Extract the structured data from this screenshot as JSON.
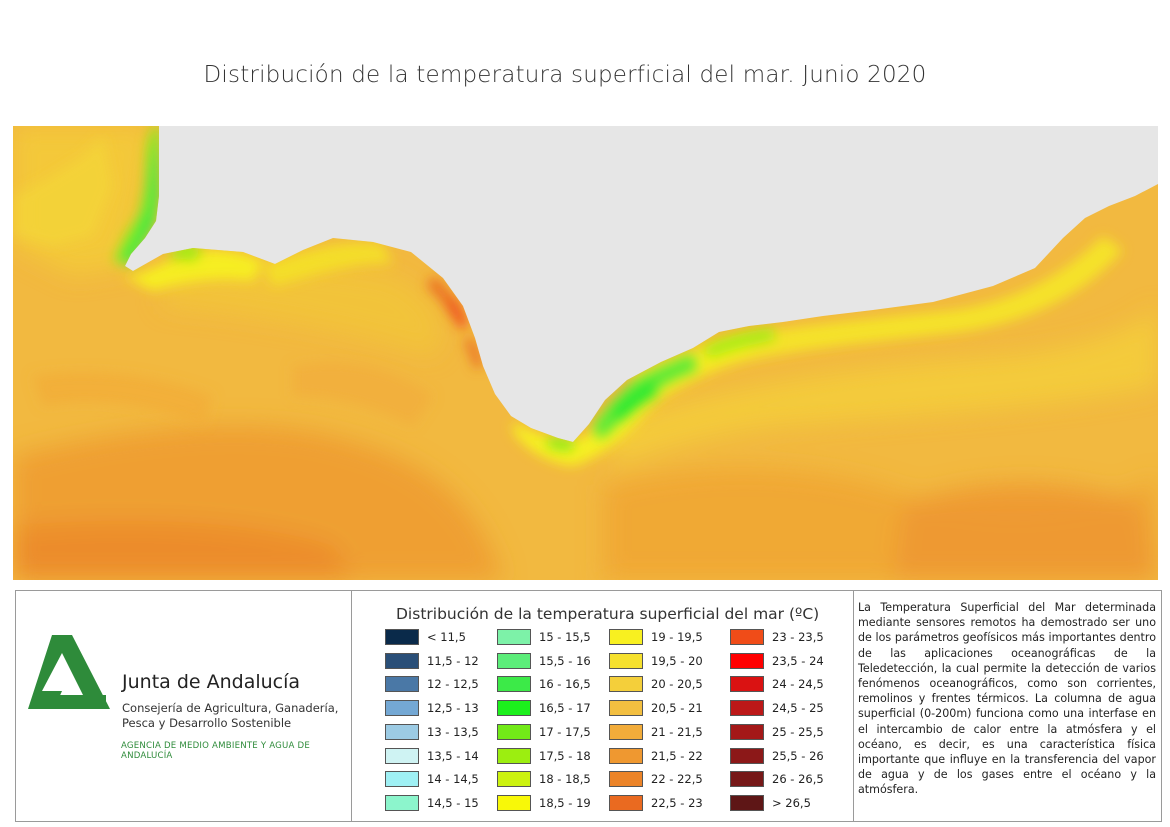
{
  "title": "Distribución de la temperatura superficial del mar. Junio 2020",
  "map": {
    "land_color": "#e6e6e6",
    "sea_dominant_color": "#f2b940"
  },
  "logo": {
    "org_name": "Junta de Andalucía",
    "department_lines": [
      "Consejería de Agricultura, Ganadería,",
      "Pesca y Desarrollo Sostenible"
    ],
    "agency": "AGENCIA DE MEDIO AMBIENTE Y AGUA DE ANDALUCÍA",
    "logo_color": "#2e8b3a"
  },
  "legend": {
    "title": "Distribución de la temperatura superficial del mar (ºC)",
    "items": [
      {
        "label": "< 11,5",
        "color": "#0a2a4a"
      },
      {
        "label": "11,5 - 12",
        "color": "#2a4f78"
      },
      {
        "label": "12 - 12,5",
        "color": "#4a78a6"
      },
      {
        "label": "12,5 - 13",
        "color": "#74a8d4"
      },
      {
        "label": "13 - 13,5",
        "color": "#9ccbe4"
      },
      {
        "label": "13,5 - 14",
        "color": "#cff3f3"
      },
      {
        "label": "14 - 14,5",
        "color": "#9ff0f4"
      },
      {
        "label": "14,5 - 15",
        "color": "#8cf5cc"
      },
      {
        "label": "15 - 15,5",
        "color": "#7df2a8"
      },
      {
        "label": "15,5 - 16",
        "color": "#5ced7a"
      },
      {
        "label": "16 - 16,5",
        "color": "#3cea48"
      },
      {
        "label": "16,5 - 17",
        "color": "#1cf01c"
      },
      {
        "label": "17 - 17,5",
        "color": "#72ea18"
      },
      {
        "label": "17,5 - 18",
        "color": "#9cee10"
      },
      {
        "label": "18 - 18,5",
        "color": "#ccf210"
      },
      {
        "label": "18,5 - 19",
        "color": "#f8f808"
      },
      {
        "label": "19 - 19,5",
        "color": "#f8f020"
      },
      {
        "label": "19,5 - 20",
        "color": "#f6e12e"
      },
      {
        "label": "20 - 20,5",
        "color": "#f4cf3a"
      },
      {
        "label": "20,5 - 21",
        "color": "#f3bf40"
      },
      {
        "label": "21 - 21,5",
        "color": "#f2ac3a"
      },
      {
        "label": "21,5 - 22",
        "color": "#ef9830"
      },
      {
        "label": "22 - 22,5",
        "color": "#ec8428"
      },
      {
        "label": "22,5 - 23",
        "color": "#ea6a20"
      },
      {
        "label": "23 - 23,5",
        "color": "#f04c18"
      },
      {
        "label": "23,5 - 24",
        "color": "#ff0000"
      },
      {
        "label": "24 - 24,5",
        "color": "#da1212"
      },
      {
        "label": "24,5 - 25",
        "color": "#bc1818"
      },
      {
        "label": "25 - 25,5",
        "color": "#a41818"
      },
      {
        "label": "25,5 - 26",
        "color": "#8c1818"
      },
      {
        "label": "26 - 26,5",
        "color": "#761818"
      },
      {
        "label": "> 26,5",
        "color": "#5e1616"
      }
    ]
  },
  "description": "La Temperatura Superficial del Mar determinada mediante sensores remotos ha demostrado ser uno de los parámetros geofísicos más importantes dentro de las aplicaciones oceanográficas de la Teledetección, la cual permite la detección de varios fenómenos oceanográficos, como son corrientes, remolinos y frentes térmicos. La columna de agua superficial (0-200m) funciona como una interfase en el intercambio de calor entre la atmósfera y el océano, es decir, es una característica física importante que influye en la transferencia del vapor de agua y de los gases entre el océano y la atmósfera."
}
